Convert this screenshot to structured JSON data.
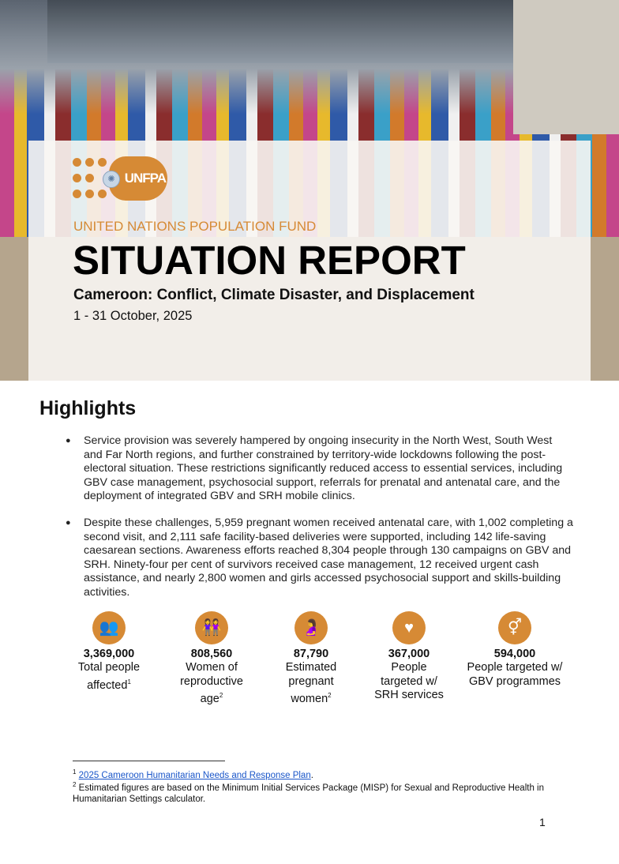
{
  "cover": {
    "logo_text": "UNFPA",
    "organization": "UNITED NATIONS POPULATION FUND",
    "title": "SITUATION REPORT",
    "subtitle": "Cameroon: Conflict, Climate Disaster, and Displacement",
    "dates": "1 - 31 October, 2025"
  },
  "highlights": {
    "heading": "Highlights",
    "bullets": [
      "Service provision was severely hampered by ongoing insecurity in the North West, South West and Far North regions, and further constrained by territory-wide lockdowns following the post-electoral situation. These restrictions significantly reduced access to essential services, including GBV case management, psychosocial support, referrals for prenatal and antenatal care, and the deployment of integrated GBV and SRH mobile clinics.",
      "Despite these challenges, 5,959 pregnant women received antenatal care, with 1,002 completing a second visit, and 2,111 safe facility-based deliveries were supported, including 142 life-saving caesarean sections. Awareness efforts reached 8,304 people through 130 campaigns on GBV and SRH. Ninety-four per cent of survivors received case management, 12 received urgent cash assistance, and nearly 2,800 women and girls accessed psychosocial support and skills-building activities."
    ]
  },
  "stats": [
    {
      "icon": "people-group-icon",
      "value": "3,369,000",
      "label": "Total people affected",
      "sup": "1"
    },
    {
      "icon": "women-icon",
      "value": "808,560",
      "label": "Women of reproductive age",
      "sup": "2"
    },
    {
      "icon": "pregnant-woman-icon",
      "value": "87,790",
      "label": "Estimated pregnant women",
      "sup": "2"
    },
    {
      "icon": "heart-plus-icon",
      "value": "367,000",
      "label": "People targeted w/ SRH services",
      "sup": ""
    },
    {
      "icon": "gender-symbol-icon",
      "value": "594,000",
      "label": "People targeted w/ GBV programmes",
      "sup": ""
    }
  ],
  "footnotes": [
    {
      "num": "1",
      "link": "2025 Cameroon Humanitarian Needs and Response Plan",
      "text": "."
    },
    {
      "num": "2",
      "text": "Estimated figures are based on the Minimum Initial Services Package (MISP) for Sexual and Reproductive Health in Humanitarian Settings calculator."
    }
  ],
  "page_number": "1",
  "colors": {
    "accent": "#d68a35"
  }
}
